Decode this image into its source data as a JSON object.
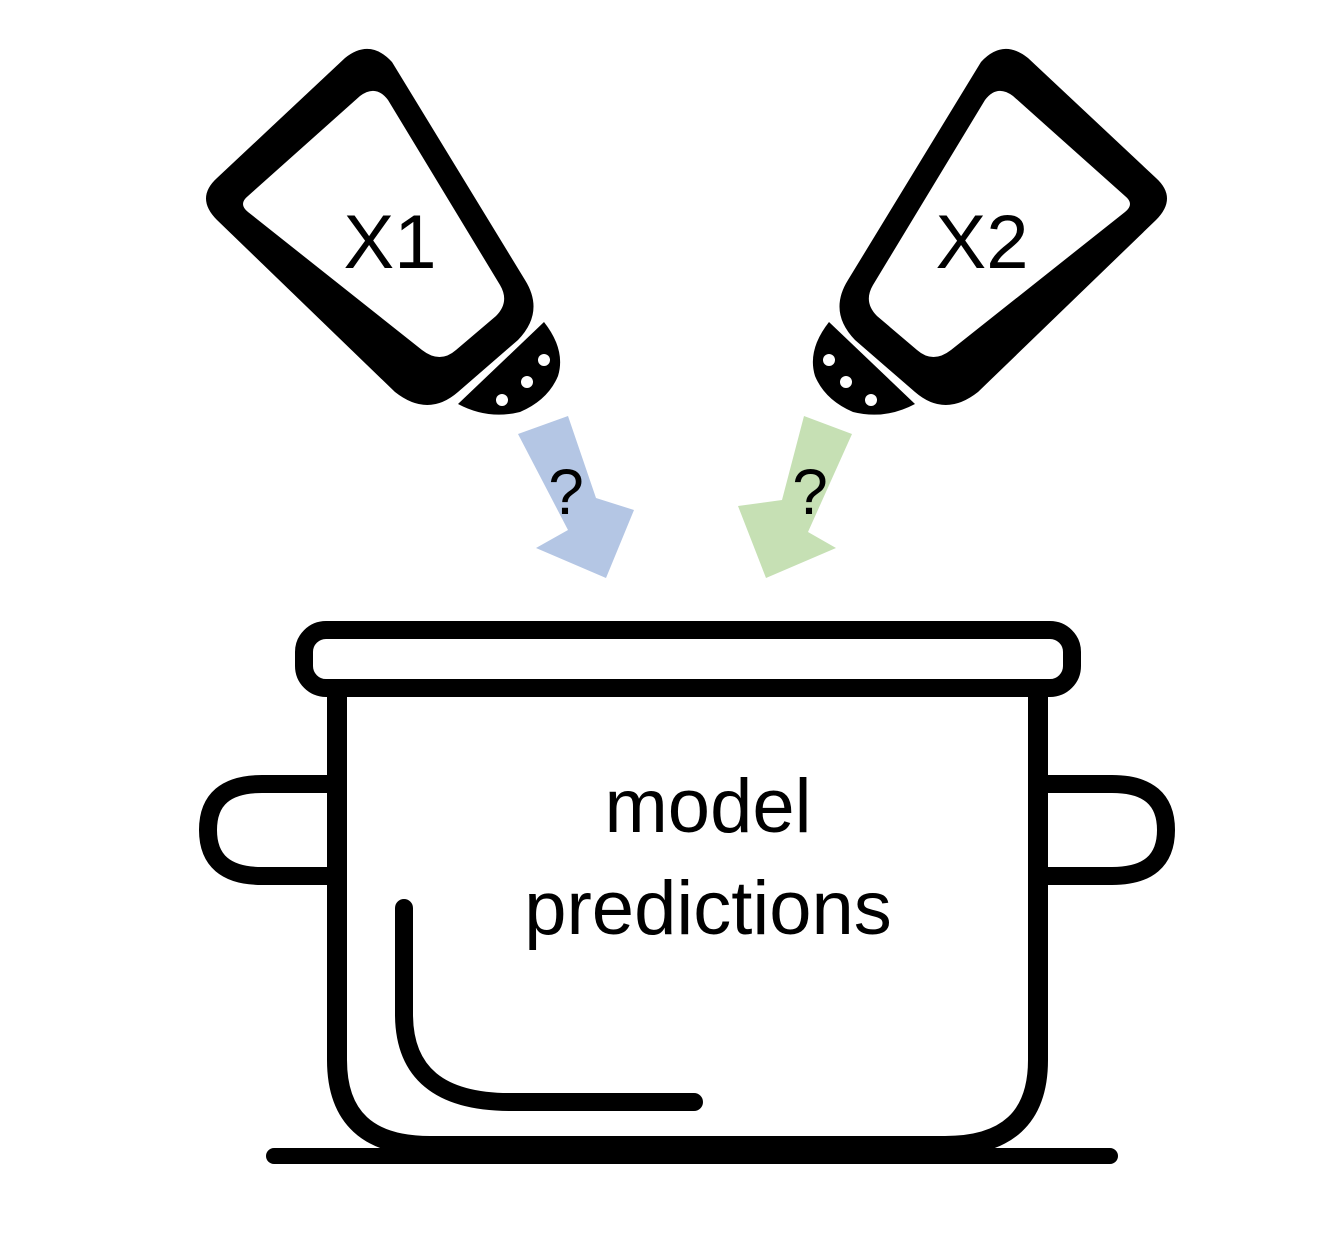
{
  "shakers": [
    {
      "label": "X1"
    },
    {
      "label": "X2"
    }
  ],
  "arrows": [
    {
      "label": "?",
      "color": "#b4c6e4"
    },
    {
      "label": "?",
      "color": "#c6e0b4"
    }
  ],
  "pot": {
    "label_line1": "model",
    "label_line2": "predictions"
  },
  "colors": {
    "stroke": "#000000",
    "background": "#ffffff"
  }
}
